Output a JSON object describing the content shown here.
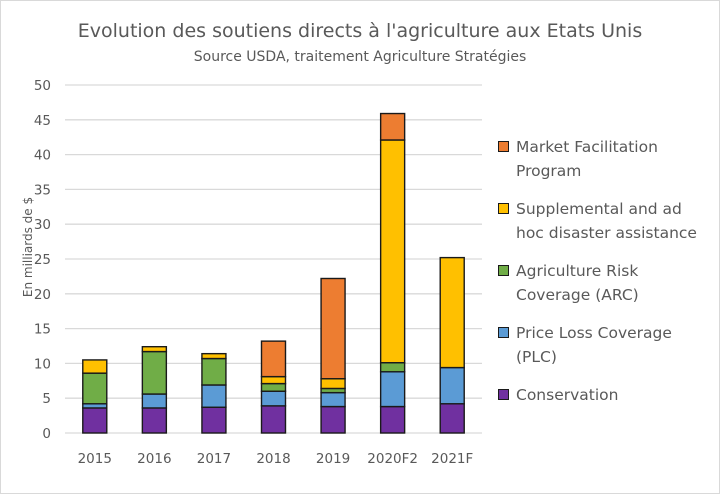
{
  "chart_data": {
    "type": "bar",
    "stacked": true,
    "title": "Evolution des soutiens directs à l'agriculture aux Etats Unis",
    "subtitle": "Source USDA, traitement Agriculture Stratégies",
    "xlabel": "",
    "ylabel": "En milliards de $",
    "ylim": [
      0,
      50
    ],
    "yticks": [
      0,
      5,
      10,
      15,
      20,
      25,
      30,
      35,
      40,
      45,
      50
    ],
    "grid": true,
    "legend_position": "right",
    "categories": [
      "2015",
      "2016",
      "2017",
      "2018",
      "2019",
      "2020F2",
      "2021F"
    ],
    "series": [
      {
        "name": "Conservation",
        "color": "#7030a0",
        "values": [
          3.6,
          3.6,
          3.7,
          3.9,
          3.8,
          3.8,
          4.2
        ]
      },
      {
        "name": "Price Loss Coverage (PLC)",
        "color": "#5b9bd5",
        "values": [
          0.6,
          2.0,
          3.2,
          2.1,
          2.0,
          5.0,
          5.2
        ]
      },
      {
        "name": "Agriculture Risk Coverage (ARC)",
        "color": "#70ad47",
        "values": [
          4.4,
          6.1,
          3.8,
          1.1,
          0.6,
          1.3,
          0.0
        ]
      },
      {
        "name": "Supplemental and ad hoc disaster assistance",
        "color": "#ffc000",
        "values": [
          1.9,
          0.7,
          0.7,
          1.0,
          1.4,
          32.0,
          15.8
        ]
      },
      {
        "name": "Market Facilitation Program",
        "color": "#ed7d31",
        "values": [
          0.0,
          0.0,
          0.0,
          5.1,
          14.4,
          3.8,
          0.0
        ]
      }
    ],
    "legend_order": [
      {
        "label_line1": "Market Facilitation",
        "label_line2": "Program"
      },
      {
        "label_line1": "Supplemental and ad",
        "label_line2": "hoc disaster assistance"
      },
      {
        "label_line1": "Agriculture Risk",
        "label_line2": "Coverage (ARC)"
      },
      {
        "label_line1": "Price Loss Coverage",
        "label_line2": "(PLC)"
      },
      {
        "label_line1": "Conservation",
        "label_line2": ""
      }
    ]
  }
}
